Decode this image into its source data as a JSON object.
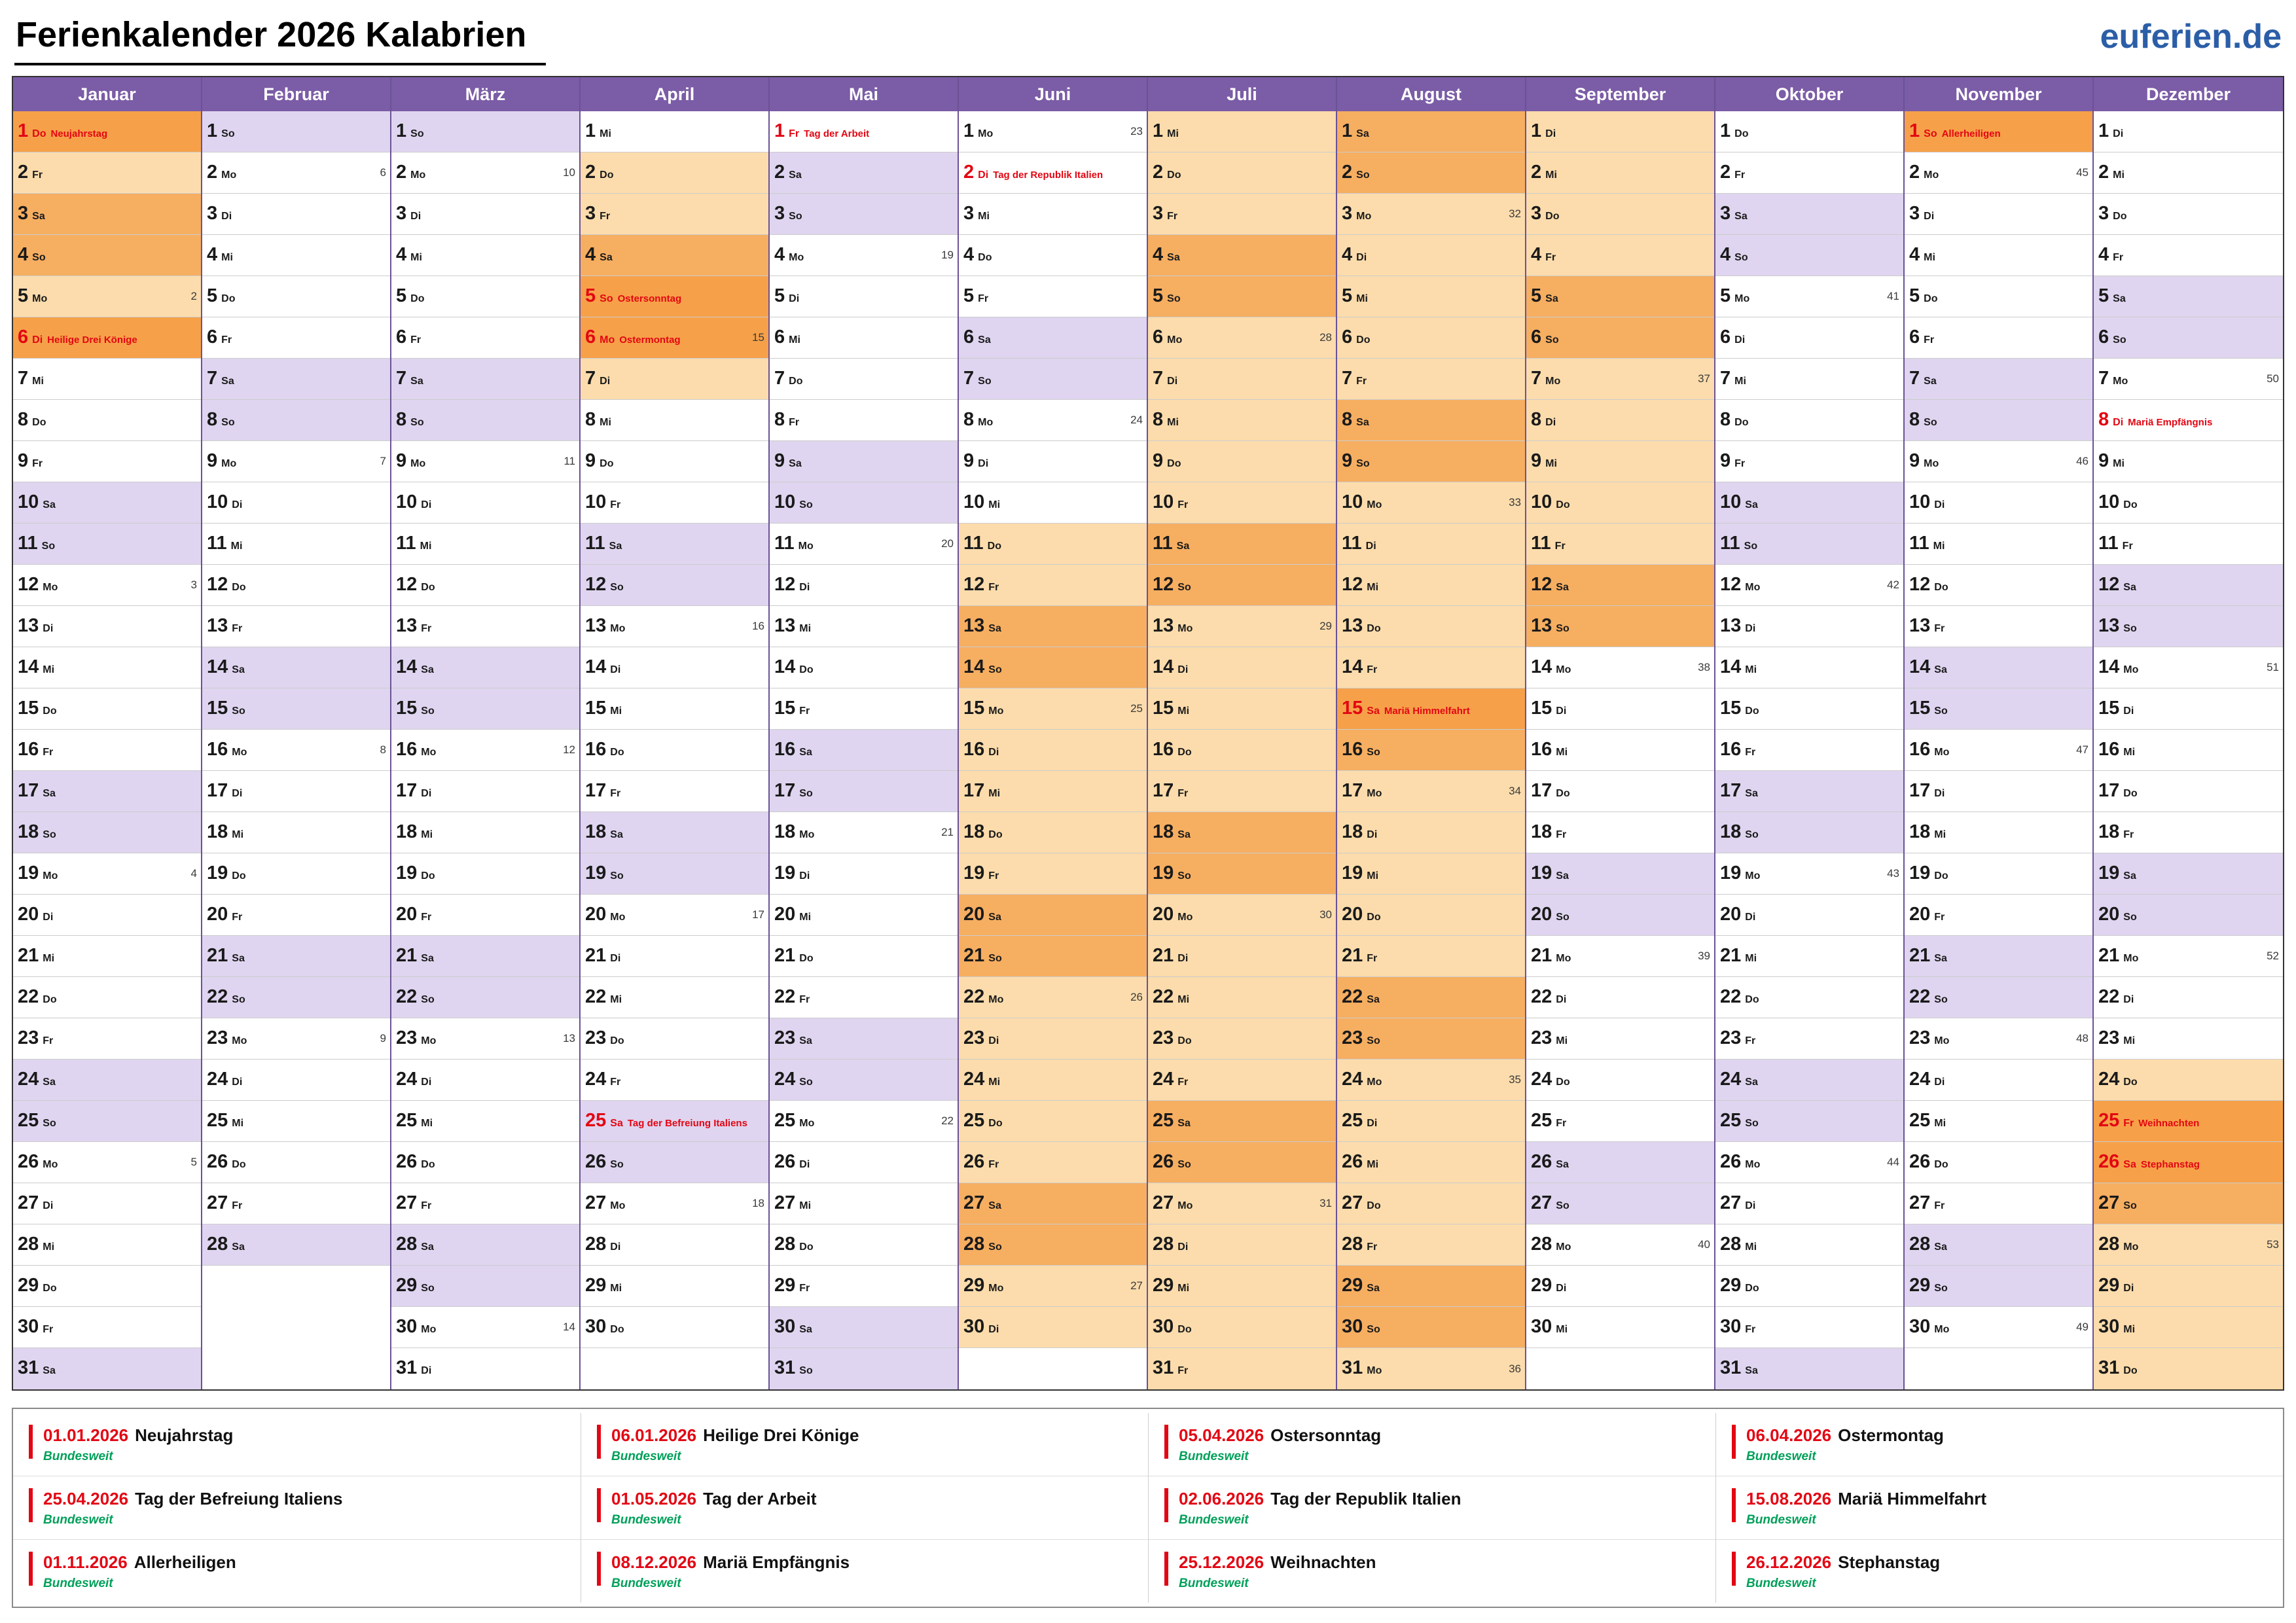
{
  "title": "Ferienkalender 2026 Kalabrien",
  "brand": "euferien.de",
  "weekday_abbrevs": [
    "Mo",
    "Di",
    "Mi",
    "Do",
    "Fr",
    "Sa",
    "So"
  ],
  "months": [
    {
      "name": "Januar",
      "days": 31,
      "start": 3
    },
    {
      "name": "Februar",
      "days": 28,
      "start": 6
    },
    {
      "name": "März",
      "days": 31,
      "start": 6
    },
    {
      "name": "April",
      "days": 30,
      "start": 2
    },
    {
      "name": "Mai",
      "days": 31,
      "start": 4
    },
    {
      "name": "Juni",
      "days": 30,
      "start": 0
    },
    {
      "name": "Juli",
      "days": 31,
      "start": 2
    },
    {
      "name": "August",
      "days": 31,
      "start": 5
    },
    {
      "name": "September",
      "days": 30,
      "start": 1
    },
    {
      "name": "Oktober",
      "days": 31,
      "start": 3
    },
    {
      "name": "November",
      "days": 30,
      "start": 6
    },
    {
      "name": "Dezember",
      "days": 31,
      "start": 1
    }
  ],
  "holidays": [
    {
      "month": 0,
      "day": 1,
      "name": "Neujahrstag",
      "strong": true
    },
    {
      "month": 0,
      "day": 6,
      "name": "Heilige Drei Könige",
      "strong": true
    },
    {
      "month": 3,
      "day": 5,
      "name": "Ostersonntag",
      "strong": true
    },
    {
      "month": 3,
      "day": 6,
      "name": "Ostermontag",
      "strong": true
    },
    {
      "month": 3,
      "day": 25,
      "name": "Tag der Befreiung Italiens",
      "strong": false
    },
    {
      "month": 4,
      "day": 1,
      "name": "Tag der Arbeit",
      "strong": false
    },
    {
      "month": 5,
      "day": 2,
      "name": "Tag der Republik Italien",
      "strong": false
    },
    {
      "month": 7,
      "day": 15,
      "name": "Mariä Himmelfahrt",
      "strong": true
    },
    {
      "month": 10,
      "day": 1,
      "name": "Allerheiligen",
      "strong": true
    },
    {
      "month": 11,
      "day": 8,
      "name": "Mariä Empfängnis",
      "strong": false
    },
    {
      "month": 11,
      "day": 25,
      "name": "Weihnachten",
      "strong": true
    },
    {
      "month": 11,
      "day": 26,
      "name": "Stephanstag",
      "strong": true
    }
  ],
  "ferien": [
    {
      "month": 0,
      "from": 1,
      "to": 6
    },
    {
      "month": 3,
      "from": 2,
      "to": 7
    },
    {
      "month": 5,
      "from": 11,
      "to": 30
    },
    {
      "month": 6,
      "from": 1,
      "to": 31
    },
    {
      "month": 7,
      "from": 1,
      "to": 31
    },
    {
      "month": 8,
      "from": 1,
      "to": 13
    },
    {
      "month": 11,
      "from": 24,
      "to": 31
    }
  ],
  "week_numbers": [
    [
      0,
      5,
      2
    ],
    [
      0,
      12,
      3
    ],
    [
      0,
      19,
      4
    ],
    [
      0,
      26,
      5
    ],
    [
      1,
      2,
      6
    ],
    [
      1,
      9,
      7
    ],
    [
      1,
      16,
      8
    ],
    [
      1,
      23,
      9
    ],
    [
      2,
      2,
      10
    ],
    [
      2,
      9,
      11
    ],
    [
      2,
      16,
      12
    ],
    [
      2,
      23,
      13
    ],
    [
      2,
      30,
      14
    ],
    [
      3,
      6,
      15
    ],
    [
      3,
      13,
      16
    ],
    [
      3,
      20,
      17
    ],
    [
      3,
      27,
      18
    ],
    [
      4,
      4,
      19
    ],
    [
      4,
      11,
      20
    ],
    [
      4,
      18,
      21
    ],
    [
      4,
      25,
      22
    ],
    [
      5,
      1,
      23
    ],
    [
      5,
      8,
      24
    ],
    [
      5,
      15,
      25
    ],
    [
      5,
      22,
      26
    ],
    [
      5,
      29,
      27
    ],
    [
      6,
      6,
      28
    ],
    [
      6,
      13,
      29
    ],
    [
      6,
      20,
      30
    ],
    [
      6,
      27,
      31
    ],
    [
      7,
      3,
      32
    ],
    [
      7,
      10,
      33
    ],
    [
      7,
      17,
      34
    ],
    [
      7,
      24,
      35
    ],
    [
      7,
      31,
      36
    ],
    [
      8,
      7,
      37
    ],
    [
      8,
      14,
      38
    ],
    [
      8,
      21,
      39
    ],
    [
      8,
      28,
      40
    ],
    [
      9,
      5,
      41
    ],
    [
      9,
      12,
      42
    ],
    [
      9,
      19,
      43
    ],
    [
      9,
      26,
      44
    ],
    [
      10,
      2,
      45
    ],
    [
      10,
      9,
      46
    ],
    [
      10,
      16,
      47
    ],
    [
      10,
      23,
      48
    ],
    [
      10,
      30,
      49
    ],
    [
      11,
      7,
      50
    ],
    [
      11,
      14,
      51
    ],
    [
      11,
      21,
      52
    ],
    [
      11,
      28,
      53
    ]
  ],
  "legend": [
    {
      "date": "01.01.2026",
      "name": "Neujahrstag",
      "region": "Bundesweit"
    },
    {
      "date": "06.01.2026",
      "name": "Heilige Drei Könige",
      "region": "Bundesweit"
    },
    {
      "date": "05.04.2026",
      "name": "Ostersonntag",
      "region": "Bundesweit"
    },
    {
      "date": "06.04.2026",
      "name": "Ostermontag",
      "region": "Bundesweit"
    },
    {
      "date": "25.04.2026",
      "name": "Tag der Befreiung Italiens",
      "region": "Bundesweit"
    },
    {
      "date": "01.05.2026",
      "name": "Tag der Arbeit",
      "region": "Bundesweit"
    },
    {
      "date": "02.06.2026",
      "name": "Tag der Republik Italien",
      "region": "Bundesweit"
    },
    {
      "date": "15.08.2026",
      "name": "Mariä Himmelfahrt",
      "region": "Bundesweit"
    },
    {
      "date": "01.11.2026",
      "name": "Allerheiligen",
      "region": "Bundesweit"
    },
    {
      "date": "08.12.2026",
      "name": "Mariä Empfängnis",
      "region": "Bundesweit"
    },
    {
      "date": "25.12.2026",
      "name": "Weihnachten",
      "region": "Bundesweit"
    },
    {
      "date": "26.12.2026",
      "name": "Stephanstag",
      "region": "Bundesweit"
    }
  ],
  "colors": {
    "header_purple": "#7b5ca6",
    "weekend_lavender": "#dfd5f0",
    "ferien_orange": "#fcdcac",
    "ferien_weekend_orange": "#f6ae61",
    "holiday_orange": "#f6a149",
    "holiday_red": "#e30613",
    "region_green": "#00a05a",
    "brand_blue": "#2b5ea7"
  }
}
